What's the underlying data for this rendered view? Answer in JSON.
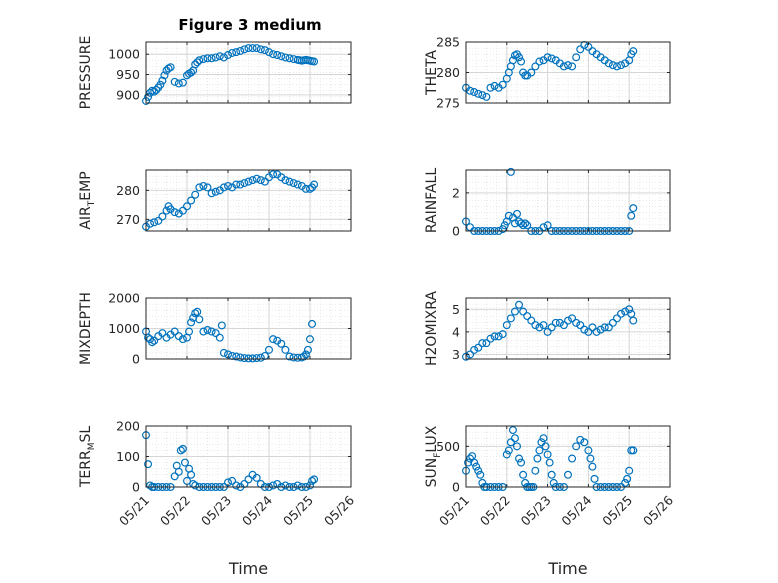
{
  "figure": {
    "title": "Figure 3 medium"
  },
  "chart_data": [
    {
      "type": "scatter",
      "title": "Figure 3 medium",
      "ylabel": "PRESSURE",
      "xlabel": "",
      "ylim": [
        880,
        1030
      ],
      "yticks": [
        900,
        950,
        1000
      ],
      "xlim": [
        0,
        5
      ],
      "xticks": [
        0,
        1,
        2,
        3,
        4,
        5
      ],
      "grid": true,
      "color": "#0072BD",
      "series": [
        {
          "x": [
            0.0,
            0.05,
            0.1,
            0.15,
            0.2,
            0.25,
            0.3,
            0.35,
            0.4,
            0.45,
            0.5,
            0.55,
            0.6,
            0.7,
            0.8,
            0.9,
            1.0,
            1.05,
            1.1,
            1.15,
            1.2,
            1.25,
            1.3,
            1.4,
            1.5,
            1.6,
            1.7,
            1.8,
            1.9,
            2.0,
            2.1,
            2.2,
            2.3,
            2.4,
            2.5,
            2.6,
            2.7,
            2.8,
            2.9,
            3.0,
            3.1,
            3.2,
            3.3,
            3.4,
            3.5,
            3.6,
            3.7,
            3.75,
            3.8,
            3.85,
            3.9,
            3.95,
            4.0,
            4.05,
            4.1
          ],
          "y": [
            885,
            895,
            905,
            910,
            908,
            912,
            918,
            925,
            935,
            948,
            960,
            965,
            968,
            932,
            928,
            930,
            948,
            952,
            955,
            960,
            975,
            980,
            985,
            988,
            990,
            990,
            992,
            995,
            992,
            998,
            1003,
            1005,
            1008,
            1012,
            1015,
            1015,
            1015,
            1012,
            1010,
            1005,
            1000,
            998,
            995,
            992,
            990,
            988,
            986,
            985,
            984,
            985,
            986,
            985,
            984,
            983,
            982
          ]
        }
      ]
    },
    {
      "type": "scatter",
      "ylabel": "THETA",
      "xlabel": "",
      "ylim": [
        275,
        285
      ],
      "yticks": [
        275,
        280,
        285
      ],
      "xlim": [
        0,
        5
      ],
      "xticks": [
        0,
        1,
        2,
        3,
        4,
        5
      ],
      "grid": true,
      "color": "#0072BD",
      "series": [
        {
          "x": [
            0.0,
            0.1,
            0.2,
            0.3,
            0.4,
            0.5,
            0.6,
            0.7,
            0.8,
            0.9,
            1.0,
            1.05,
            1.1,
            1.15,
            1.2,
            1.25,
            1.3,
            1.35,
            1.4,
            1.45,
            1.5,
            1.6,
            1.7,
            1.8,
            1.9,
            2.0,
            2.1,
            2.2,
            2.3,
            2.4,
            2.5,
            2.6,
            2.7,
            2.8,
            2.9,
            3.0,
            3.1,
            3.2,
            3.3,
            3.4,
            3.5,
            3.6,
            3.7,
            3.8,
            3.9,
            4.0,
            4.05,
            4.1
          ],
          "y": [
            277.5,
            277.0,
            276.8,
            276.5,
            276.3,
            276.0,
            277.5,
            277.8,
            277.5,
            278.0,
            279.0,
            280.0,
            281.0,
            282.0,
            282.8,
            283.0,
            282.5,
            281.8,
            280.0,
            279.5,
            279.5,
            280.0,
            281.0,
            281.8,
            282.0,
            282.5,
            282.3,
            282.0,
            281.5,
            281.0,
            281.2,
            281.0,
            282.5,
            283.8,
            284.5,
            284.2,
            283.5,
            283.0,
            282.5,
            282.0,
            281.5,
            281.2,
            281.0,
            281.2,
            281.5,
            282.0,
            283.0,
            283.5
          ]
        }
      ]
    },
    {
      "type": "scatter",
      "ylabel": "AIR_TEMP",
      "xlabel": "",
      "ylim": [
        266,
        287
      ],
      "yticks": [
        270,
        280
      ],
      "xlim": [
        0,
        5
      ],
      "xticks": [
        0,
        1,
        2,
        3,
        4,
        5
      ],
      "grid": true,
      "color": "#0072BD",
      "series": [
        {
          "x": [
            0.0,
            0.1,
            0.2,
            0.3,
            0.4,
            0.5,
            0.55,
            0.6,
            0.7,
            0.8,
            0.9,
            1.0,
            1.1,
            1.2,
            1.3,
            1.4,
            1.5,
            1.6,
            1.7,
            1.8,
            1.9,
            2.0,
            2.1,
            2.2,
            2.3,
            2.4,
            2.5,
            2.6,
            2.7,
            2.8,
            2.9,
            3.0,
            3.1,
            3.2,
            3.3,
            3.4,
            3.5,
            3.6,
            3.7,
            3.8,
            3.9,
            4.0,
            4.05,
            4.1
          ],
          "y": [
            267.5,
            268.5,
            269.0,
            269.5,
            271.0,
            273.0,
            274.5,
            273.5,
            272.5,
            272.0,
            273.0,
            274.5,
            276.5,
            278.5,
            281.0,
            281.5,
            281.0,
            279.0,
            279.5,
            280.0,
            281.0,
            281.5,
            281.0,
            282.0,
            282.0,
            282.5,
            283.0,
            283.5,
            284.0,
            283.5,
            283.0,
            284.5,
            285.5,
            285.5,
            284.5,
            283.5,
            283.0,
            282.5,
            282.0,
            281.5,
            280.5,
            280.5,
            281.0,
            282.0
          ]
        }
      ]
    },
    {
      "type": "scatter",
      "ylabel": "RAINFALL",
      "xlabel": "",
      "ylim": [
        0,
        3.2
      ],
      "yticks": [
        0,
        2
      ],
      "xlim": [
        0,
        5
      ],
      "xticks": [
        0,
        1,
        2,
        3,
        4,
        5
      ],
      "grid": true,
      "color": "#0072BD",
      "series": [
        {
          "x": [
            0.0,
            0.1,
            0.2,
            0.3,
            0.4,
            0.5,
            0.6,
            0.7,
            0.8,
            0.9,
            0.95,
            1.0,
            1.05,
            1.1,
            1.15,
            1.2,
            1.25,
            1.3,
            1.35,
            1.4,
            1.45,
            1.5,
            1.6,
            1.7,
            1.8,
            1.9,
            2.0,
            2.1,
            2.2,
            2.3,
            2.4,
            2.5,
            2.6,
            2.7,
            2.8,
            2.9,
            3.0,
            3.1,
            3.2,
            3.3,
            3.4,
            3.5,
            3.6,
            3.7,
            3.8,
            3.9,
            4.0,
            4.05,
            4.1
          ],
          "y": [
            0.5,
            0.2,
            0.0,
            0.0,
            0.0,
            0.0,
            0.0,
            0.0,
            0.0,
            0.1,
            0.3,
            0.5,
            0.8,
            3.1,
            0.7,
            0.4,
            0.9,
            0.5,
            0.4,
            0.3,
            0.4,
            0.3,
            0.0,
            0.0,
            0.0,
            0.2,
            0.3,
            0.0,
            0.0,
            0.0,
            0.0,
            0.0,
            0.0,
            0.0,
            0.0,
            0.0,
            0.0,
            0.0,
            0.0,
            0.0,
            0.0,
            0.0,
            0.0,
            0.0,
            0.0,
            0.0,
            0.0,
            0.8,
            1.2
          ]
        }
      ]
    },
    {
      "type": "scatter",
      "ylabel": "MIXDEPTH",
      "xlabel": "",
      "ylim": [
        0,
        2000
      ],
      "yticks": [
        0,
        1000,
        2000
      ],
      "xlim": [
        0,
        5
      ],
      "xticks": [
        0,
        1,
        2,
        3,
        4,
        5
      ],
      "grid": true,
      "color": "#0072BD",
      "series": [
        {
          "x": [
            0.0,
            0.05,
            0.1,
            0.15,
            0.2,
            0.3,
            0.4,
            0.5,
            0.6,
            0.7,
            0.8,
            0.9,
            1.0,
            1.05,
            1.1,
            1.15,
            1.2,
            1.25,
            1.3,
            1.4,
            1.5,
            1.6,
            1.7,
            1.8,
            1.85,
            1.9,
            2.0,
            2.1,
            2.2,
            2.3,
            2.4,
            2.5,
            2.6,
            2.7,
            2.8,
            2.9,
            3.0,
            3.1,
            3.2,
            3.3,
            3.4,
            3.5,
            3.6,
            3.7,
            3.8,
            3.85,
            3.9,
            3.95,
            4.0,
            4.05
          ],
          "y": [
            900,
            700,
            650,
            550,
            600,
            750,
            850,
            700,
            800,
            900,
            750,
            650,
            700,
            900,
            1200,
            1350,
            1500,
            1550,
            1300,
            900,
            950,
            900,
            850,
            700,
            1100,
            200,
            150,
            100,
            80,
            50,
            30,
            20,
            20,
            30,
            40,
            100,
            300,
            650,
            600,
            500,
            300,
            80,
            50,
            40,
            50,
            80,
            150,
            300,
            650,
            1150
          ]
        }
      ]
    },
    {
      "type": "scatter",
      "ylabel": "H2OMIXRA",
      "xlabel": "",
      "ylim": [
        2.8,
        5.5
      ],
      "yticks": [
        3,
        4,
        5
      ],
      "xlim": [
        0,
        5
      ],
      "xticks": [
        0,
        1,
        2,
        3,
        4,
        5
      ],
      "grid": true,
      "color": "#0072BD",
      "series": [
        {
          "x": [
            0.0,
            0.1,
            0.2,
            0.3,
            0.4,
            0.5,
            0.6,
            0.7,
            0.8,
            0.9,
            1.0,
            1.1,
            1.2,
            1.3,
            1.4,
            1.5,
            1.6,
            1.7,
            1.8,
            1.9,
            2.0,
            2.1,
            2.2,
            2.3,
            2.4,
            2.5,
            2.6,
            2.7,
            2.8,
            2.9,
            3.0,
            3.1,
            3.2,
            3.3,
            3.4,
            3.5,
            3.6,
            3.7,
            3.8,
            3.9,
            4.0,
            4.05,
            4.1
          ],
          "y": [
            2.9,
            3.0,
            3.2,
            3.3,
            3.5,
            3.5,
            3.7,
            3.8,
            3.8,
            3.9,
            4.3,
            4.6,
            4.9,
            5.2,
            4.9,
            4.7,
            4.5,
            4.3,
            4.2,
            4.3,
            4.0,
            4.2,
            4.4,
            4.4,
            4.3,
            4.5,
            4.6,
            4.4,
            4.3,
            4.1,
            4.0,
            4.2,
            4.0,
            4.1,
            4.2,
            4.2,
            4.4,
            4.6,
            4.8,
            4.9,
            5.0,
            4.8,
            4.5
          ]
        }
      ]
    },
    {
      "type": "scatter",
      "ylabel": "TERR_MSL",
      "xlabel": "Time",
      "ylim": [
        0,
        200
      ],
      "yticks": [
        0,
        100,
        200
      ],
      "xlim": [
        0,
        5
      ],
      "xticks": [
        0,
        1,
        2,
        3,
        4,
        5
      ],
      "xticklabels": [
        "05/21",
        "05/22",
        "05/23",
        "05/24",
        "05/25",
        "05/26"
      ],
      "grid": true,
      "color": "#0072BD",
      "series": [
        {
          "x": [
            0.0,
            0.05,
            0.1,
            0.15,
            0.2,
            0.3,
            0.4,
            0.5,
            0.6,
            0.7,
            0.75,
            0.8,
            0.85,
            0.9,
            0.95,
            1.0,
            1.05,
            1.1,
            1.15,
            1.2,
            1.3,
            1.4,
            1.5,
            1.6,
            1.7,
            1.8,
            1.9,
            2.0,
            2.1,
            2.2,
            2.3,
            2.4,
            2.5,
            2.6,
            2.7,
            2.8,
            2.9,
            3.0,
            3.1,
            3.2,
            3.3,
            3.4,
            3.5,
            3.6,
            3.7,
            3.8,
            3.9,
            4.0,
            4.05,
            4.1
          ],
          "y": [
            170,
            75,
            5,
            0,
            0,
            0,
            0,
            0,
            0,
            35,
            70,
            50,
            120,
            125,
            80,
            20,
            60,
            40,
            10,
            5,
            0,
            0,
            0,
            0,
            0,
            0,
            0,
            15,
            20,
            5,
            0,
            10,
            25,
            40,
            30,
            10,
            0,
            0,
            5,
            10,
            0,
            5,
            0,
            0,
            5,
            0,
            0,
            5,
            20,
            25
          ]
        }
      ]
    },
    {
      "type": "scatter",
      "ylabel": "SUN_FLUX",
      "xlabel": "Time",
      "ylim": [
        0,
        750
      ],
      "yticks": [
        0,
        500
      ],
      "xlim": [
        0,
        5
      ],
      "xticks": [
        0,
        1,
        2,
        3,
        4,
        5
      ],
      "xticklabels": [
        "05/21",
        "05/22",
        "05/23",
        "05/24",
        "05/25",
        "05/26"
      ],
      "grid": true,
      "color": "#0072BD",
      "series": [
        {
          "x": [
            0.0,
            0.05,
            0.1,
            0.15,
            0.2,
            0.25,
            0.3,
            0.35,
            0.4,
            0.45,
            0.5,
            0.6,
            0.7,
            0.8,
            0.9,
            1.0,
            1.05,
            1.1,
            1.15,
            1.2,
            1.25,
            1.3,
            1.35,
            1.4,
            1.45,
            1.5,
            1.55,
            1.6,
            1.65,
            1.7,
            1.75,
            1.8,
            1.85,
            1.9,
            1.95,
            2.0,
            2.05,
            2.1,
            2.15,
            2.2,
            2.3,
            2.4,
            2.5,
            2.6,
            2.7,
            2.8,
            2.9,
            3.0,
            3.05,
            3.1,
            3.15,
            3.2,
            3.3,
            3.4,
            3.5,
            3.6,
            3.7,
            3.8,
            3.9,
            3.95,
            4.0,
            4.05,
            4.1
          ],
          "y": [
            200,
            300,
            350,
            380,
            300,
            250,
            200,
            150,
            50,
            0,
            0,
            0,
            0,
            0,
            0,
            400,
            450,
            550,
            700,
            600,
            500,
            350,
            300,
            150,
            50,
            0,
            0,
            0,
            0,
            200,
            350,
            450,
            550,
            600,
            500,
            400,
            300,
            150,
            50,
            0,
            0,
            0,
            150,
            350,
            500,
            580,
            550,
            450,
            350,
            250,
            100,
            0,
            0,
            0,
            0,
            0,
            0,
            0,
            50,
            100,
            200,
            450,
            450
          ]
        }
      ]
    }
  ]
}
